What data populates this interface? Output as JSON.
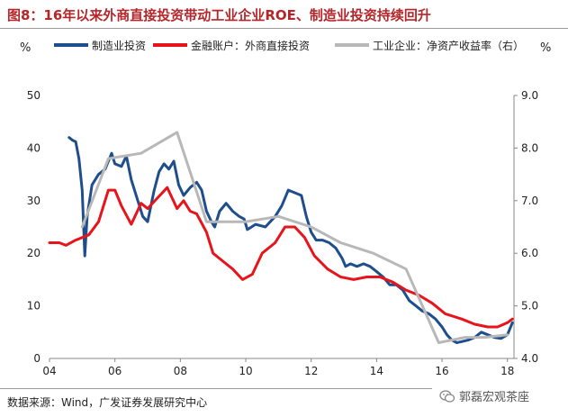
{
  "header": {
    "title": "图8：16年以来外商直接投资带动工业企业ROE、制造业投资持续回升"
  },
  "footer": {
    "source": "数据来源：Wind，广发证券发展研究中心",
    "watermark": "郭磊宏观茶座"
  },
  "chart_data": {
    "type": "line",
    "title": "图8：16年以来外商直接投资带动工业企业ROE、制造业投资持续回升",
    "left_unit": "%",
    "right_unit": "%",
    "x_tick_labels": [
      "04",
      "06",
      "08",
      "10",
      "12",
      "14",
      "16",
      "18"
    ],
    "x_ticks": [
      2004,
      2006,
      2008,
      2010,
      2012,
      2014,
      2016,
      2018
    ],
    "xlim": [
      2004,
      2018.2
    ],
    "ylim_left": [
      0,
      50
    ],
    "y_ticks_left": [
      0,
      10,
      20,
      30,
      40,
      50
    ],
    "ylim_right": [
      4.0,
      9.0
    ],
    "y_ticks_right": [
      "4.0",
      "5.0",
      "6.0",
      "7.0",
      "8.0",
      "9.0"
    ],
    "legend_position": "top",
    "series": [
      {
        "name": "制造业投资",
        "axis": "left",
        "color": "#1f4e8c",
        "points": [
          [
            2004.6,
            42.0
          ],
          [
            2004.7,
            41.5
          ],
          [
            2004.8,
            41.2
          ],
          [
            2004.9,
            38.0
          ],
          [
            2005.0,
            32.0
          ],
          [
            2005.08,
            19.5
          ],
          [
            2005.15,
            27.0
          ],
          [
            2005.3,
            33.0
          ],
          [
            2005.5,
            35.0
          ],
          [
            2005.7,
            36.0
          ],
          [
            2005.9,
            39.0
          ],
          [
            2006.0,
            37.0
          ],
          [
            2006.2,
            36.5
          ],
          [
            2006.35,
            38.5
          ],
          [
            2006.5,
            34.0
          ],
          [
            2006.7,
            30.0
          ],
          [
            2006.85,
            27.0
          ],
          [
            2007.0,
            26.0
          ],
          [
            2007.2,
            32.0
          ],
          [
            2007.35,
            35.5
          ],
          [
            2007.5,
            37.0
          ],
          [
            2007.65,
            36.0
          ],
          [
            2007.8,
            37.5
          ],
          [
            2007.95,
            33.0
          ],
          [
            2008.1,
            31.0
          ],
          [
            2008.3,
            32.5
          ],
          [
            2008.5,
            33.5
          ],
          [
            2008.65,
            32.0
          ],
          [
            2008.8,
            28.0
          ],
          [
            2008.95,
            26.0
          ],
          [
            2009.05,
            25.0
          ],
          [
            2009.2,
            28.0
          ],
          [
            2009.4,
            29.5
          ],
          [
            2009.6,
            28.0
          ],
          [
            2009.8,
            27.0
          ],
          [
            2009.95,
            26.5
          ],
          [
            2010.05,
            24.5
          ],
          [
            2010.3,
            25.5
          ],
          [
            2010.6,
            25.0
          ],
          [
            2010.9,
            27.0
          ],
          [
            2011.1,
            29.0
          ],
          [
            2011.3,
            32.0
          ],
          [
            2011.5,
            31.5
          ],
          [
            2011.7,
            31.0
          ],
          [
            2011.85,
            27.0
          ],
          [
            2012.0,
            24.0
          ],
          [
            2012.15,
            22.5
          ],
          [
            2012.35,
            22.5
          ],
          [
            2012.55,
            22.0
          ],
          [
            2012.75,
            21.0
          ],
          [
            2012.95,
            19.0
          ],
          [
            2013.05,
            17.5
          ],
          [
            2013.2,
            18.0
          ],
          [
            2013.4,
            17.5
          ],
          [
            2013.6,
            18.0
          ],
          [
            2013.8,
            17.5
          ],
          [
            2014.0,
            16.5
          ],
          [
            2014.2,
            15.5
          ],
          [
            2014.4,
            14.0
          ],
          [
            2014.6,
            14.0
          ],
          [
            2014.8,
            13.0
          ],
          [
            2015.0,
            11.0
          ],
          [
            2015.2,
            10.0
          ],
          [
            2015.4,
            9.0
          ],
          [
            2015.6,
            8.5
          ],
          [
            2015.8,
            7.5
          ],
          [
            2016.0,
            6.0
          ],
          [
            2016.15,
            4.5
          ],
          [
            2016.3,
            3.5
          ],
          [
            2016.45,
            3.0
          ],
          [
            2016.6,
            3.2
          ],
          [
            2016.8,
            3.5
          ],
          [
            2017.0,
            4.0
          ],
          [
            2017.2,
            5.0
          ],
          [
            2017.4,
            4.5
          ],
          [
            2017.6,
            4.0
          ],
          [
            2017.8,
            3.8
          ],
          [
            2018.0,
            4.5
          ],
          [
            2018.15,
            6.8
          ]
        ]
      },
      {
        "name": "金融账户：外商直接投资",
        "axis": "left",
        "color": "#e8141b",
        "points": [
          [
            2004.0,
            22.0
          ],
          [
            2004.3,
            22.0
          ],
          [
            2004.5,
            21.5
          ],
          [
            2004.8,
            22.5
          ],
          [
            2005.2,
            23.5
          ],
          [
            2005.5,
            26.0
          ],
          [
            2005.8,
            32.0
          ],
          [
            2006.0,
            32.0
          ],
          [
            2006.2,
            29.0
          ],
          [
            2006.5,
            25.5
          ],
          [
            2006.8,
            29.5
          ],
          [
            2007.0,
            28.5
          ],
          [
            2007.3,
            30.5
          ],
          [
            2007.6,
            32.5
          ],
          [
            2007.9,
            28.5
          ],
          [
            2008.1,
            30.0
          ],
          [
            2008.3,
            28.0
          ],
          [
            2008.5,
            27.5
          ],
          [
            2008.8,
            24.0
          ],
          [
            2009.0,
            20.0
          ],
          [
            2009.3,
            18.5
          ],
          [
            2009.6,
            17.0
          ],
          [
            2009.9,
            15.0
          ],
          [
            2010.2,
            16.0
          ],
          [
            2010.5,
            20.0
          ],
          [
            2010.9,
            22.0
          ],
          [
            2011.2,
            25.0
          ],
          [
            2011.5,
            25.0
          ],
          [
            2011.8,
            23.0
          ],
          [
            2012.1,
            19.5
          ],
          [
            2012.5,
            17.0
          ],
          [
            2012.9,
            15.5
          ],
          [
            2013.3,
            15.0
          ],
          [
            2013.7,
            15.5
          ],
          [
            2014.1,
            15.5
          ],
          [
            2014.5,
            14.5
          ],
          [
            2014.9,
            13.0
          ],
          [
            2015.3,
            12.0
          ],
          [
            2015.7,
            10.5
          ],
          [
            2016.1,
            8.5
          ],
          [
            2016.6,
            7.5
          ],
          [
            2017.0,
            6.5
          ],
          [
            2017.4,
            6.0
          ],
          [
            2017.7,
            6.0
          ],
          [
            2018.0,
            6.8
          ],
          [
            2018.15,
            7.5
          ]
        ]
      },
      {
        "name": "工业企业：净资产收益率（右）",
        "axis": "right",
        "color": "#b8b8b8",
        "points": [
          [
            2005.0,
            6.5
          ],
          [
            2005.8,
            7.8
          ],
          [
            2006.8,
            7.9
          ],
          [
            2007.9,
            8.3
          ],
          [
            2008.8,
            6.6
          ],
          [
            2010.0,
            6.6
          ],
          [
            2011.0,
            6.7
          ],
          [
            2012.0,
            6.5
          ],
          [
            2012.9,
            6.2
          ],
          [
            2013.9,
            6.0
          ],
          [
            2014.9,
            5.7
          ],
          [
            2015.9,
            4.3
          ],
          [
            2016.7,
            4.4
          ],
          [
            2017.3,
            4.4
          ],
          [
            2018.0,
            4.45
          ]
        ]
      }
    ]
  }
}
